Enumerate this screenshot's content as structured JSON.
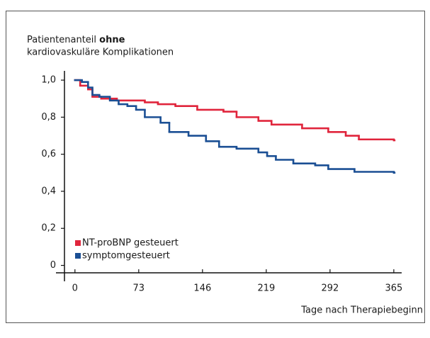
{
  "chart_data": {
    "type": "step",
    "ylabel": {
      "line1": "Patientenanteil",
      "line1_bold": "ohne",
      "line2": "kardiovaskuläre Komplikationen"
    },
    "xlabel": "Tage nach Therapiebeginn",
    "xlim": [
      -12,
      374
    ],
    "xticks": [
      0,
      73,
      146,
      219,
      292,
      365
    ],
    "ylim": [
      -0.04,
      1.05
    ],
    "yticks": [
      {
        "value": 0,
        "label": "0"
      },
      {
        "value": 0.2,
        "label": "0,2"
      },
      {
        "value": 0.4,
        "label": "0,4"
      },
      {
        "value": 0.6,
        "label": "0,6"
      },
      {
        "value": 0.8,
        "label": "0,8"
      },
      {
        "value": 1,
        "label": "1,0"
      }
    ],
    "legend": "lower left",
    "series": [
      {
        "name": "NT-proBNP gesteuert",
        "color": "#e0253c",
        "x": [
          0,
          6,
          15,
          20,
          30,
          48,
          80,
          95,
          115,
          140,
          170,
          185,
          210,
          225,
          260,
          290,
          310,
          325,
          365
        ],
        "values": [
          1.0,
          0.97,
          0.95,
          0.91,
          0.9,
          0.89,
          0.88,
          0.87,
          0.86,
          0.84,
          0.83,
          0.8,
          0.78,
          0.76,
          0.74,
          0.72,
          0.7,
          0.68,
          0.675
        ]
      },
      {
        "name": "symptomgesteuert",
        "color": "#1b4f94",
        "x": [
          0,
          8,
          15,
          20,
          28,
          40,
          50,
          60,
          70,
          80,
          98,
          108,
          130,
          150,
          165,
          185,
          210,
          220,
          230,
          250,
          275,
          290,
          320,
          365
        ],
        "values": [
          1.0,
          0.99,
          0.96,
          0.92,
          0.91,
          0.89,
          0.87,
          0.86,
          0.84,
          0.8,
          0.77,
          0.72,
          0.7,
          0.67,
          0.64,
          0.63,
          0.61,
          0.59,
          0.57,
          0.55,
          0.54,
          0.52,
          0.505,
          0.5
        ]
      }
    ]
  }
}
